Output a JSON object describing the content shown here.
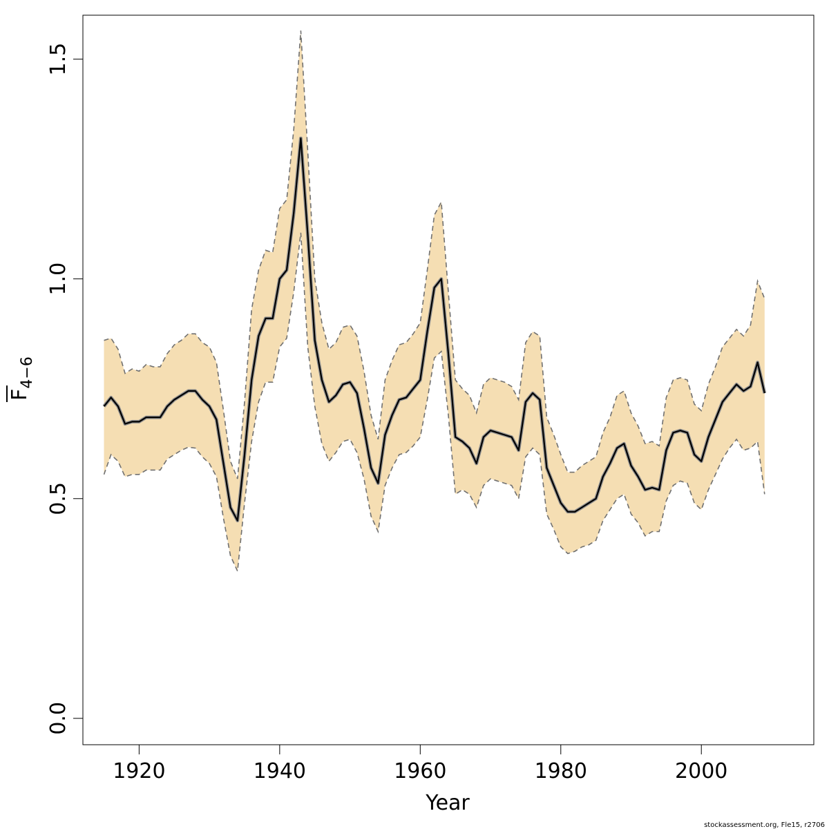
{
  "chart_data": {
    "type": "line",
    "xlabel": "Year",
    "ylabel": "F",
    "ylabel_subscript": "4−6",
    "xlim": [
      1912,
      2016
    ],
    "ylim": [
      -0.06,
      1.6
    ],
    "x_ticks": [
      1920,
      1940,
      1960,
      1980,
      2000
    ],
    "y_ticks": [
      0.0,
      0.5,
      1.0,
      1.5
    ],
    "y_tick_labels": [
      "0.0",
      "0.5",
      "1.0",
      "1.5"
    ],
    "grid": false,
    "band_color": "#f5deb3",
    "line_color": "#000000",
    "bound_color": "#707070",
    "credit": "stockassessment.org, Fle15, r2706",
    "x": [
      1915,
      1916,
      1917,
      1918,
      1919,
      1920,
      1921,
      1922,
      1923,
      1924,
      1925,
      1926,
      1927,
      1928,
      1929,
      1930,
      1931,
      1932,
      1933,
      1934,
      1935,
      1936,
      1937,
      1938,
      1939,
      1940,
      1941,
      1942,
      1943,
      1944,
      1945,
      1946,
      1947,
      1948,
      1949,
      1950,
      1951,
      1952,
      1953,
      1954,
      1955,
      1956,
      1957,
      1958,
      1959,
      1960,
      1961,
      1962,
      1963,
      1964,
      1965,
      1966,
      1967,
      1968,
      1969,
      1970,
      1971,
      1972,
      1973,
      1974,
      1975,
      1976,
      1977,
      1978,
      1979,
      1980,
      1981,
      1982,
      1983,
      1984,
      1985,
      1986,
      1987,
      1988,
      1989,
      1990,
      1991,
      1992,
      1993,
      1994,
      1995,
      1996,
      1997,
      1998,
      1999,
      2000,
      2001,
      2002,
      2003,
      2004,
      2005,
      2006,
      2007,
      2008,
      2009
    ],
    "series": [
      {
        "role": "estimate",
        "values": [
          0.71,
          0.73,
          0.71,
          0.67,
          0.675,
          0.675,
          0.685,
          0.685,
          0.685,
          0.71,
          0.725,
          0.735,
          0.745,
          0.745,
          0.725,
          0.71,
          0.68,
          0.58,
          0.48,
          0.45,
          0.6,
          0.77,
          0.87,
          0.91,
          0.91,
          1.0,
          1.02,
          1.15,
          1.32,
          1.1,
          0.86,
          0.77,
          0.72,
          0.735,
          0.76,
          0.765,
          0.74,
          0.66,
          0.57,
          0.535,
          0.645,
          0.69,
          0.725,
          0.73,
          0.75,
          0.77,
          0.88,
          0.98,
          1.0,
          0.83,
          0.64,
          0.63,
          0.615,
          0.58,
          0.64,
          0.655,
          0.65,
          0.645,
          0.64,
          0.61,
          0.72,
          0.74,
          0.725,
          0.57,
          0.53,
          0.49,
          0.47,
          0.47,
          0.48,
          0.49,
          0.5,
          0.55,
          0.58,
          0.615,
          0.625,
          0.575,
          0.55,
          0.52,
          0.525,
          0.52,
          0.61,
          0.65,
          0.655,
          0.65,
          0.6,
          0.585,
          0.64,
          0.68,
          0.72,
          0.74,
          0.76,
          0.745,
          0.755,
          0.81,
          0.74
        ]
      },
      {
        "role": "lower",
        "values": [
          0.555,
          0.6,
          0.585,
          0.55,
          0.555,
          0.555,
          0.565,
          0.565,
          0.565,
          0.59,
          0.6,
          0.61,
          0.617,
          0.615,
          0.595,
          0.58,
          0.55,
          0.455,
          0.37,
          0.335,
          0.49,
          0.63,
          0.72,
          0.765,
          0.765,
          0.845,
          0.865,
          0.97,
          1.105,
          0.845,
          0.71,
          0.625,
          0.585,
          0.605,
          0.63,
          0.635,
          0.605,
          0.545,
          0.46,
          0.425,
          0.53,
          0.57,
          0.6,
          0.605,
          0.62,
          0.64,
          0.725,
          0.82,
          0.835,
          0.69,
          0.51,
          0.52,
          0.51,
          0.48,
          0.53,
          0.545,
          0.54,
          0.535,
          0.53,
          0.5,
          0.595,
          0.615,
          0.6,
          0.465,
          0.43,
          0.39,
          0.375,
          0.38,
          0.39,
          0.395,
          0.405,
          0.45,
          0.475,
          0.5,
          0.51,
          0.465,
          0.445,
          0.415,
          0.425,
          0.425,
          0.495,
          0.53,
          0.54,
          0.535,
          0.49,
          0.475,
          0.52,
          0.555,
          0.59,
          0.615,
          0.635,
          0.61,
          0.615,
          0.63,
          0.51
        ]
      },
      {
        "role": "upper",
        "values": [
          0.86,
          0.865,
          0.84,
          0.785,
          0.795,
          0.79,
          0.805,
          0.8,
          0.8,
          0.83,
          0.85,
          0.86,
          0.875,
          0.875,
          0.855,
          0.845,
          0.81,
          0.7,
          0.585,
          0.545,
          0.72,
          0.93,
          1.02,
          1.065,
          1.06,
          1.16,
          1.18,
          1.34,
          1.565,
          1.29,
          1.0,
          0.9,
          0.84,
          0.855,
          0.89,
          0.895,
          0.87,
          0.79,
          0.69,
          0.635,
          0.77,
          0.815,
          0.85,
          0.855,
          0.875,
          0.9,
          1.02,
          1.145,
          1.175,
          0.97,
          0.77,
          0.75,
          0.735,
          0.695,
          0.76,
          0.775,
          0.77,
          0.765,
          0.755,
          0.725,
          0.855,
          0.88,
          0.87,
          0.685,
          0.645,
          0.6,
          0.56,
          0.56,
          0.575,
          0.585,
          0.595,
          0.65,
          0.685,
          0.735,
          0.745,
          0.695,
          0.665,
          0.625,
          0.63,
          0.62,
          0.73,
          0.77,
          0.775,
          0.77,
          0.715,
          0.7,
          0.76,
          0.8,
          0.845,
          0.865,
          0.885,
          0.87,
          0.895,
          0.995,
          0.955
        ]
      }
    ]
  }
}
